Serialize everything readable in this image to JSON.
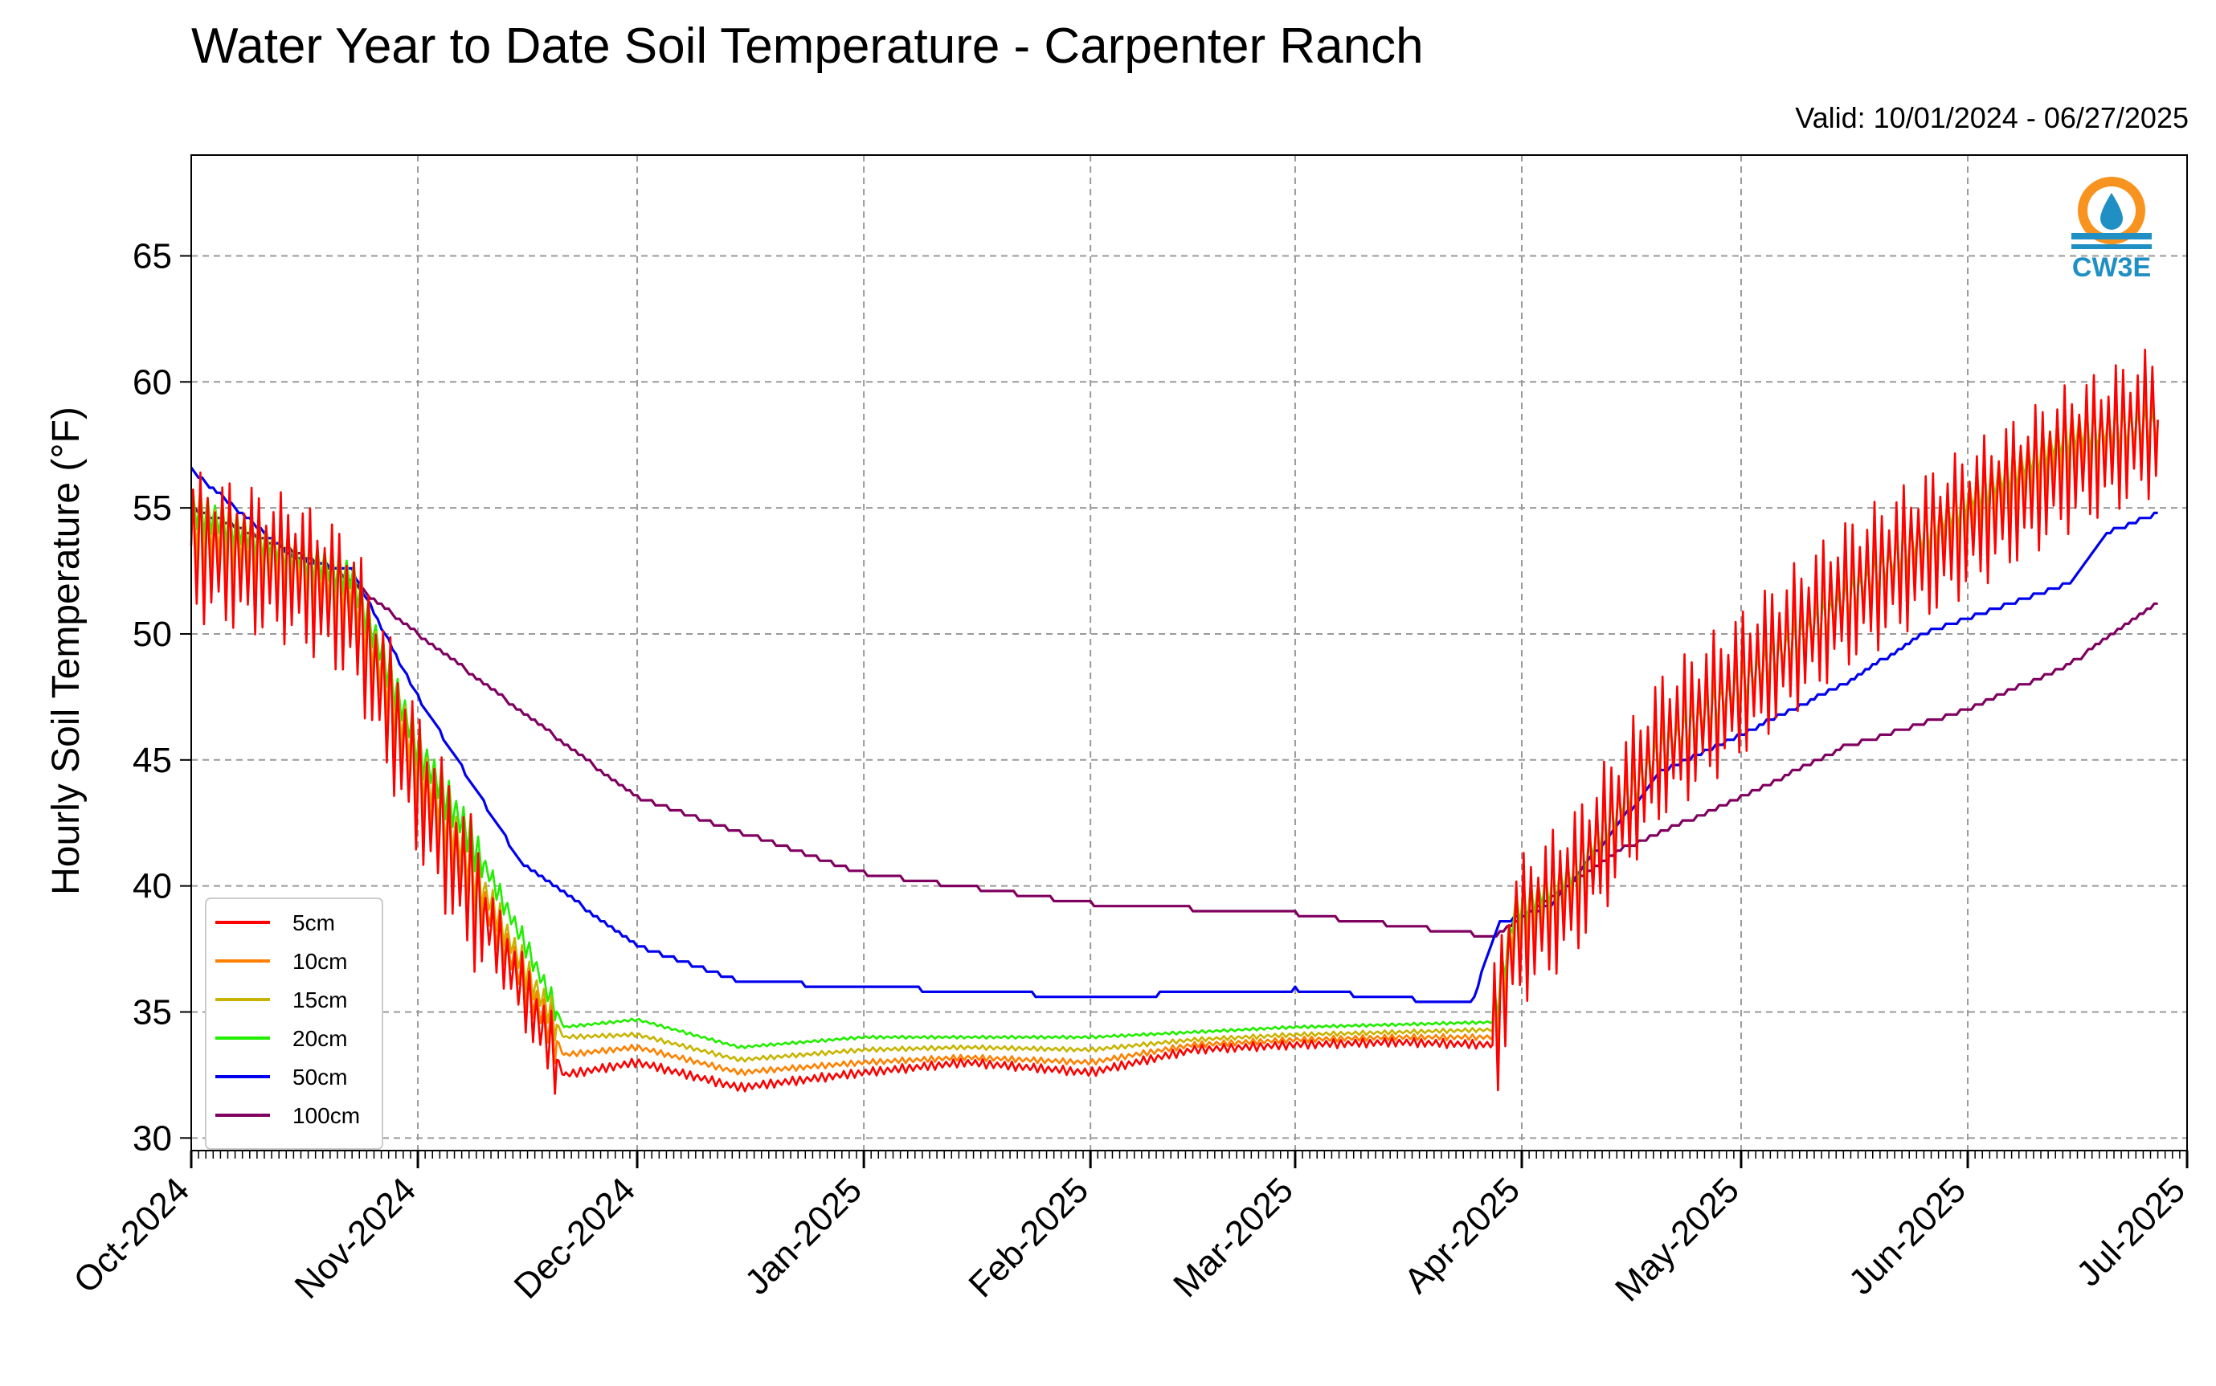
{
  "chart_data": {
    "type": "line",
    "title": "Water Year to Date Soil Temperature - Carpenter Ranch",
    "subtitle": "Valid: 10/01/2024 - 06/27/2025",
    "ylabel": "Hourly Soil Temperature (°F)",
    "xlabel": "",
    "ylim": [
      29.5,
      69
    ],
    "xlim": [
      "2024-10-01",
      "2025-07-01"
    ],
    "yticks": [
      30,
      35,
      40,
      45,
      50,
      55,
      60,
      65
    ],
    "xticks": [
      "2024-10-01",
      "2024-11-01",
      "2024-12-01",
      "2025-01-01",
      "2025-02-01",
      "2025-03-01",
      "2025-04-01",
      "2025-05-01",
      "2025-06-01",
      "2025-07-01"
    ],
    "xtick_labels": [
      "Oct-2024",
      "Nov-2024",
      "Dec-2024",
      "Jan-2025",
      "Feb-2025",
      "Mar-2025",
      "Apr-2025",
      "May-2025",
      "Jun-2025",
      "Jul-2025"
    ],
    "grid": true,
    "legend_position": "lower-left",
    "series": [
      {
        "name": "5cm",
        "color": "#ff0000",
        "amplitude": 6,
        "x": [
          "2024-10-01",
          "2024-10-15",
          "2024-10-23",
          "2024-11-01",
          "2024-11-08",
          "2024-11-16",
          "2024-11-21",
          "2024-12-01",
          "2024-12-15",
          "2025-01-01",
          "2025-01-15",
          "2025-02-01",
          "2025-02-15",
          "2025-03-01",
          "2025-03-15",
          "2025-03-28",
          "2025-03-31",
          "2025-04-08",
          "2025-04-20",
          "2025-05-01",
          "2025-05-15",
          "2025-06-01",
          "2025-06-15",
          "2025-06-27"
        ],
        "y": [
          53.5,
          52.5,
          51.0,
          44.0,
          40.0,
          35.5,
          32.5,
          33.0,
          32.0,
          32.6,
          33.0,
          32.6,
          33.5,
          33.7,
          33.8,
          33.7,
          38.0,
          40.0,
          45.5,
          48.0,
          51.5,
          54.5,
          57.0,
          58.5
        ]
      },
      {
        "name": "10cm",
        "color": "#ff8000",
        "amplitude": 4,
        "x": [
          "2024-10-01",
          "2024-10-15",
          "2024-10-23",
          "2024-11-01",
          "2024-11-08",
          "2024-11-16",
          "2024-11-21",
          "2024-12-01",
          "2024-12-15",
          "2025-01-01",
          "2025-01-15",
          "2025-02-01",
          "2025-02-15",
          "2025-03-01",
          "2025-03-15",
          "2025-03-28",
          "2025-03-31",
          "2025-04-08",
          "2025-04-20",
          "2025-05-01",
          "2025-05-15",
          "2025-06-01",
          "2025-06-15",
          "2025-06-27"
        ],
        "y": [
          54.0,
          52.8,
          51.5,
          44.5,
          40.5,
          36.0,
          33.3,
          33.6,
          32.6,
          33.0,
          33.2,
          33.0,
          33.7,
          33.9,
          34.0,
          34.0,
          38.4,
          40.2,
          45.5,
          48.0,
          51.5,
          55.0,
          57.5,
          58.5
        ]
      },
      {
        "name": "15cm",
        "color": "#c8b400",
        "amplitude": 3,
        "x": [
          "2024-10-01",
          "2024-10-15",
          "2024-10-23",
          "2024-11-01",
          "2024-11-08",
          "2024-11-16",
          "2024-11-21",
          "2024-12-01",
          "2024-12-15",
          "2025-01-01",
          "2025-01-15",
          "2025-02-01",
          "2025-02-15",
          "2025-03-01",
          "2025-03-15",
          "2025-03-28",
          "2025-03-31",
          "2025-04-08",
          "2025-04-20",
          "2025-05-01",
          "2025-05-15",
          "2025-06-01",
          "2025-06-15",
          "2025-06-27"
        ],
        "y": [
          54.5,
          53.0,
          51.8,
          45.0,
          41.0,
          36.5,
          34.0,
          34.1,
          33.1,
          33.5,
          33.6,
          33.5,
          33.9,
          34.1,
          34.2,
          34.3,
          38.7,
          40.3,
          45.4,
          48.0,
          51.4,
          55.2,
          57.8,
          58.4
        ]
      },
      {
        "name": "20cm",
        "color": "#22ee00",
        "amplitude": 2,
        "x": [
          "2024-10-01",
          "2024-10-15",
          "2024-10-23",
          "2024-11-01",
          "2024-11-08",
          "2024-11-16",
          "2024-11-21",
          "2024-12-01",
          "2024-12-15",
          "2025-01-01",
          "2025-01-15",
          "2025-02-01",
          "2025-02-15",
          "2025-03-01",
          "2025-03-15",
          "2025-03-28",
          "2025-03-31",
          "2025-04-08",
          "2025-04-20",
          "2025-05-01",
          "2025-05-15",
          "2025-06-01",
          "2025-06-15",
          "2025-06-27"
        ],
        "y": [
          55.0,
          53.2,
          52.3,
          45.5,
          42.0,
          37.5,
          34.4,
          34.7,
          33.6,
          34.0,
          34.0,
          34.0,
          34.2,
          34.4,
          34.5,
          34.6,
          39.0,
          40.5,
          45.4,
          48.0,
          51.3,
          55.3,
          57.9,
          58.3
        ]
      },
      {
        "name": "50cm",
        "color": "#0000ee",
        "amplitude": 0,
        "x": [
          "2024-10-01",
          "2024-10-15",
          "2024-10-23",
          "2024-11-01",
          "2024-11-15",
          "2024-12-01",
          "2024-12-15",
          "2025-01-01",
          "2025-02-01",
          "2025-03-01",
          "2025-03-25",
          "2025-03-29",
          "2025-04-05",
          "2025-04-20",
          "2025-05-01",
          "2025-05-15",
          "2025-05-26",
          "2025-06-15",
          "2025-06-20",
          "2025-06-27"
        ],
        "y": [
          56.5,
          53.0,
          52.5,
          47.5,
          41.0,
          37.6,
          36.2,
          36.0,
          35.6,
          35.9,
          35.3,
          38.5,
          39.2,
          44.5,
          46.0,
          48.0,
          50.0,
          52.0,
          54.0,
          54.8
        ]
      },
      {
        "name": "100cm",
        "color": "#800060",
        "amplitude": 0,
        "x": [
          "2024-10-01",
          "2024-10-21",
          "2024-11-01",
          "2024-12-01",
          "2025-01-01",
          "2025-02-01",
          "2025-03-01",
          "2025-03-28",
          "2025-04-15",
          "2025-05-01",
          "2025-05-15",
          "2025-06-01",
          "2025-06-15",
          "2025-06-27"
        ],
        "y": [
          55.0,
          52.5,
          50.0,
          43.5,
          40.5,
          39.3,
          38.9,
          38.0,
          41.5,
          43.5,
          45.5,
          47.0,
          48.8,
          51.2
        ]
      }
    ]
  },
  "logo": {
    "text": "CW3E"
  }
}
